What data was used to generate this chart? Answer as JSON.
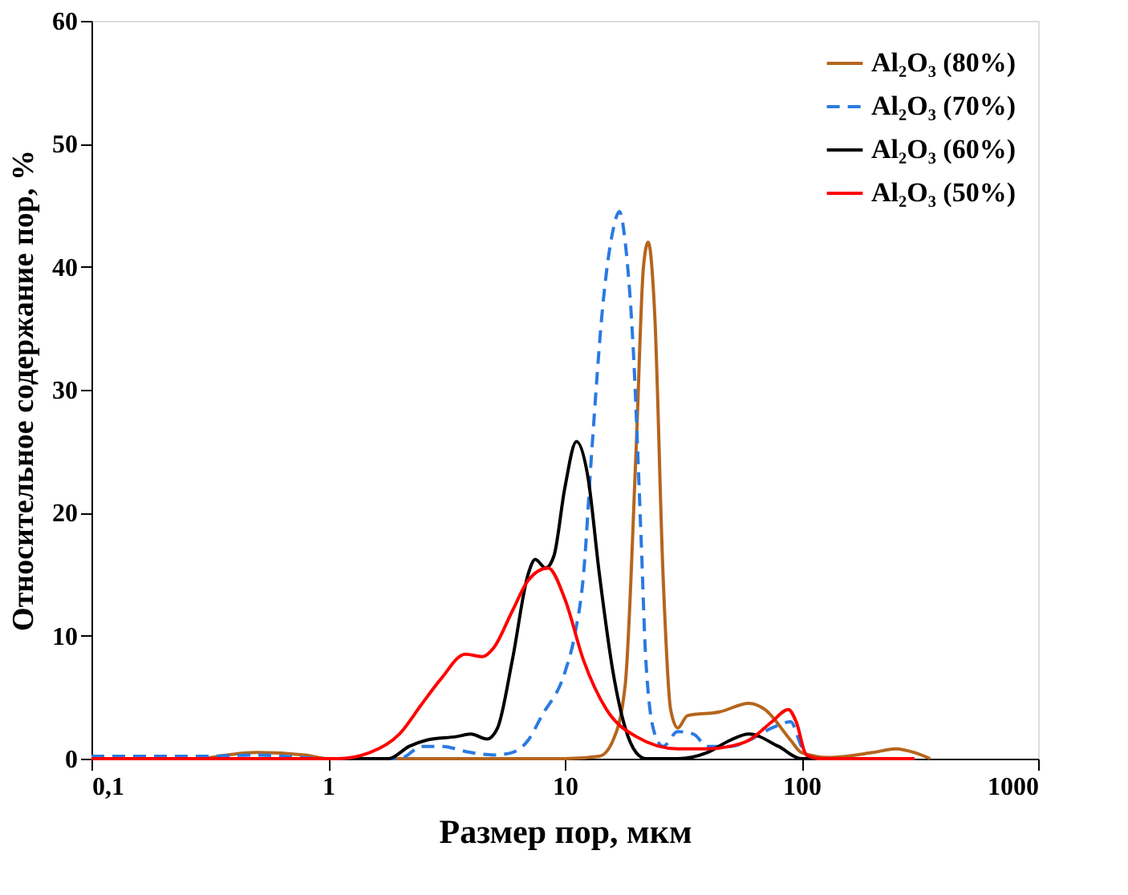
{
  "chart_data": {
    "type": "line",
    "xlabel": "Размер пор, мкм",
    "ylabel": "Относительное содержание пор, %",
    "log": "x",
    "xlim": [
      0.1,
      1000
    ],
    "ylim": [
      0,
      60
    ],
    "xticks": [
      {
        "value": 0.1,
        "label": "0,1"
      },
      1,
      10,
      100,
      1000
    ],
    "yticks": [
      0,
      10,
      20,
      30,
      40,
      50,
      60
    ],
    "grid": false,
    "legend": "top right",
    "series": [
      {
        "name": "Al₂O₃ (80%)",
        "color": "#b5651d",
        "line_style": "solid",
        "x": [
          0.3,
          0.5,
          0.8,
          1,
          10,
          14,
          16,
          18,
          20,
          21.5,
          22.5,
          24,
          26,
          28,
          30,
          33,
          45,
          60,
          70,
          90,
          100,
          130,
          200,
          250,
          300,
          350
        ],
        "values": [
          0,
          0.5,
          0.3,
          0,
          0,
          0.2,
          1.5,
          6,
          25,
          40,
          42,
          36,
          15,
          4,
          2.5,
          3.5,
          3.8,
          4.5,
          4,
          1.5,
          0.5,
          0.1,
          0.5,
          0.8,
          0.5,
          0
        ]
      },
      {
        "name": "Al₂O₃ (70%)",
        "color": "#2a7ae2",
        "line_style": "dashed",
        "x": [
          0.1,
          0.3,
          0.5,
          1,
          2,
          2.5,
          3,
          4,
          5,
          6,
          7,
          8,
          10,
          11,
          12,
          13,
          14.5,
          16,
          17,
          18,
          19.5,
          21,
          22,
          24,
          26,
          30,
          35,
          40,
          50,
          60,
          75,
          90,
          100,
          110,
          300
        ],
        "values": [
          0.2,
          0.2,
          0.3,
          0,
          0,
          1,
          1,
          0.5,
          0.3,
          0.5,
          1.5,
          3.5,
          7,
          10,
          15,
          25,
          37,
          43,
          44.5,
          42,
          33,
          18,
          8,
          2,
          1,
          2.2,
          2,
          1,
          1,
          1.5,
          2.5,
          3,
          1,
          0,
          0
        ]
      },
      {
        "name": "Al₂O₃ (60%)",
        "color": "#000000",
        "line_style": "solid",
        "x": [
          0.1,
          1.8,
          2.2,
          2.6,
          3.5,
          4,
          4.7,
          5.2,
          6,
          7,
          7.5,
          8.3,
          9,
          10,
          11.2,
          12.5,
          14,
          16,
          18,
          20,
          22,
          30,
          40,
          50,
          60,
          80,
          100,
          120
        ],
        "values": [
          0,
          0,
          1,
          1.5,
          1.8,
          2,
          1.6,
          2.5,
          8,
          15,
          16.2,
          15.5,
          16.5,
          22,
          25.8,
          23,
          15,
          7,
          2.5,
          0.5,
          0,
          0,
          0.5,
          1.5,
          2,
          1,
          0,
          0
        ]
      },
      {
        "name": "Al₂O₃ (50%)",
        "color": "#ff0000",
        "line_style": "solid",
        "x": [
          0.1,
          1.1,
          1.5,
          2,
          2.5,
          3,
          3.8,
          4.5,
          5,
          6,
          7,
          8.5,
          10,
          12,
          15,
          20,
          30,
          40,
          50,
          60,
          75,
          88,
          95,
          105,
          120,
          300
        ],
        "values": [
          0,
          0,
          0.5,
          2,
          4.5,
          6.5,
          8.5,
          8.3,
          9,
          12,
          14.5,
          15.5,
          13,
          8,
          4,
          1.8,
          0.8,
          0.8,
          1,
          1.5,
          3,
          4,
          3,
          0.3,
          0,
          0
        ]
      }
    ]
  }
}
